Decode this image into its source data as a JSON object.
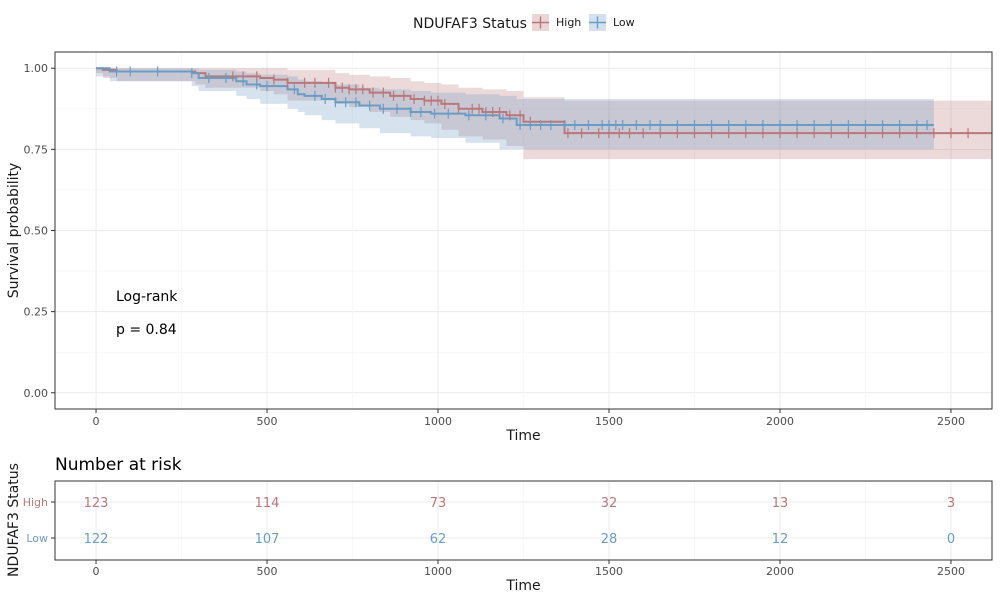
{
  "legend": {
    "title": "NDUFAF3 Status",
    "position": "top",
    "entries": [
      {
        "label": "High",
        "color": "#B9787A"
      },
      {
        "label": "Low",
        "color": "#6B9CC4"
      }
    ]
  },
  "annotation": {
    "line1": "Log-rank",
    "line2": "p = 0.84"
  },
  "risk_table": {
    "title": "Number at risk",
    "ylabel": "NDUFAF3 Status"
  },
  "chart_data": [
    {
      "type": "line",
      "subtype": "kaplan-meier",
      "xlabel": "Time",
      "ylabel": "Survival probability",
      "xlim": [
        -120,
        2620
      ],
      "ylim": [
        -0.05,
        1.05
      ],
      "xticks": [
        "0",
        "500",
        "1000",
        "1500",
        "2000",
        "2500"
      ],
      "yticks": [
        "0.00",
        "0.25",
        "0.50",
        "0.75",
        "1.00"
      ],
      "grid": true,
      "series": [
        {
          "name": "High",
          "color": "#B9787A",
          "x": [
            0,
            20,
            60,
            290,
            320,
            480,
            520,
            560,
            700,
            740,
            800,
            860,
            920,
            960,
            1010,
            1060,
            1130,
            1200,
            1250,
            1370,
            2620
          ],
          "y": [
            1.0,
            0.995,
            0.99,
            0.985,
            0.975,
            0.97,
            0.965,
            0.955,
            0.94,
            0.935,
            0.925,
            0.915,
            0.905,
            0.9,
            0.89,
            0.875,
            0.865,
            0.855,
            0.835,
            0.8,
            0.8
          ],
          "lower": [
            1.0,
            0.985,
            0.97,
            0.96,
            0.95,
            0.94,
            0.93,
            0.92,
            0.9,
            0.89,
            0.88,
            0.865,
            0.85,
            0.84,
            0.83,
            0.81,
            0.79,
            0.78,
            0.76,
            0.72,
            0.72
          ],
          "upper": [
            1.0,
            1.0,
            1.0,
            1.0,
            1.0,
            1.0,
            1.0,
            0.995,
            0.985,
            0.98,
            0.975,
            0.97,
            0.96,
            0.955,
            0.95,
            0.94,
            0.935,
            0.93,
            0.91,
            0.9,
            0.9
          ],
          "censor_x": [
            400,
            430,
            470,
            520,
            560,
            610,
            640,
            680,
            700,
            720,
            740,
            760,
            780,
            810,
            840,
            870,
            900,
            930,
            960,
            980,
            1000,
            1020,
            1060,
            1100,
            1120,
            1140,
            1160,
            1180,
            1210,
            1240,
            1270,
            1380,
            1420,
            1470,
            1500,
            1530,
            1560,
            1600,
            1650,
            1700,
            1750,
            1800,
            1850,
            1900,
            1950,
            2000,
            2050,
            2100,
            2150,
            2200,
            2250,
            2300,
            2350,
            2400,
            2450,
            2500,
            2550
          ]
        },
        {
          "name": "Low",
          "color": "#6B9CC4",
          "x": [
            0,
            40,
            280,
            300,
            410,
            440,
            480,
            560,
            590,
            610,
            660,
            700,
            770,
            830,
            920,
            980,
            1080,
            1180,
            1230,
            2450
          ],
          "y": [
            1.0,
            0.99,
            0.985,
            0.97,
            0.96,
            0.95,
            0.945,
            0.935,
            0.92,
            0.915,
            0.905,
            0.895,
            0.885,
            0.875,
            0.865,
            0.86,
            0.855,
            0.845,
            0.825,
            0.825
          ],
          "lower": [
            1.0,
            0.975,
            0.96,
            0.945,
            0.93,
            0.915,
            0.905,
            0.89,
            0.875,
            0.865,
            0.855,
            0.84,
            0.83,
            0.815,
            0.8,
            0.79,
            0.785,
            0.77,
            0.75,
            0.75
          ],
          "upper": [
            1.0,
            1.0,
            1.0,
            0.995,
            0.99,
            0.985,
            0.98,
            0.975,
            0.965,
            0.96,
            0.955,
            0.95,
            0.94,
            0.935,
            0.93,
            0.925,
            0.92,
            0.915,
            0.905,
            0.905
          ],
          "censor_x": [
            60,
            100,
            180,
            280,
            330,
            380,
            430,
            470,
            500,
            580,
            640,
            670,
            700,
            730,
            760,
            800,
            840,
            880,
            920,
            950,
            990,
            1030,
            1090,
            1140,
            1190,
            1240,
            1270,
            1300,
            1330,
            1370,
            1400,
            1440,
            1480,
            1500,
            1520,
            1540,
            1580,
            1620,
            1650,
            1700,
            1750,
            1800,
            1850,
            1900,
            1950,
            2000,
            2050,
            2100,
            2150,
            2200,
            2250,
            2300,
            2350,
            2400,
            2430
          ]
        }
      ]
    },
    {
      "type": "table",
      "title": "Number at risk",
      "xlabel": "Time",
      "ylabel": "NDUFAF3 Status",
      "xlim": [
        -120,
        2620
      ],
      "x": [
        0,
        500,
        1000,
        1500,
        2000,
        2500
      ],
      "rows": [
        {
          "name": "High",
          "color": "#B9787A",
          "values": [
            123,
            114,
            73,
            32,
            13,
            3
          ]
        },
        {
          "name": "Low",
          "color": "#6B9CC4",
          "values": [
            122,
            107,
            62,
            28,
            12,
            0
          ]
        }
      ]
    }
  ]
}
